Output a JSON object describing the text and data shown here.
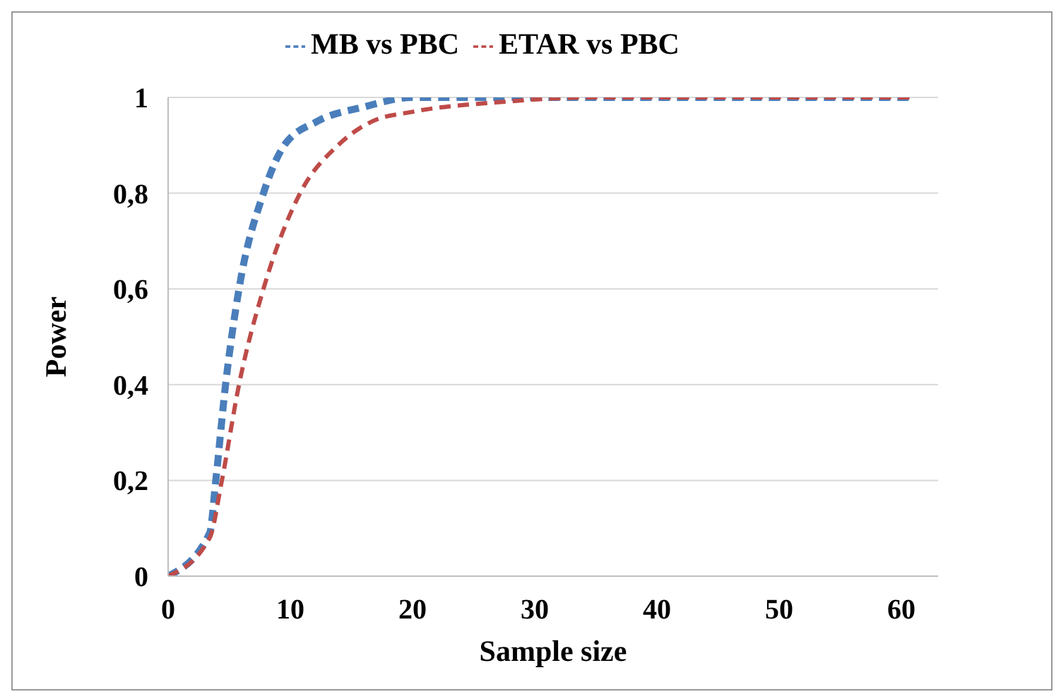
{
  "chart_data": {
    "type": "line",
    "xlabel": "Sample size",
    "ylabel": "Power",
    "xlim": [
      0,
      63
    ],
    "xticks": [
      0,
      10,
      20,
      30,
      40,
      50,
      60
    ],
    "ylim": [
      0,
      1
    ],
    "yticks": [
      0,
      {
        "value": 0.2,
        "label": "0,2"
      },
      {
        "value": 0.4,
        "label": "0,4"
      },
      {
        "value": 0.6,
        "label": "0,6"
      },
      {
        "value": 0.8,
        "label": "0,8"
      },
      1
    ],
    "grid": "y",
    "legend": "top",
    "line_style": "dashed",
    "marker": "none",
    "series": [
      {
        "name": "MB vs PBC",
        "color": "#4a7ebb",
        "x": [
          0,
          3.4,
          3.9,
          4.7,
          5.8,
          7.8,
          9.5,
          12.2,
          16,
          20,
          30,
          40,
          50,
          61
        ],
        "values": [
          0,
          0.09,
          0.2,
          0.4,
          0.6,
          0.8,
          0.9,
          0.95,
          0.98,
          1,
          1,
          1,
          1,
          1
        ]
      },
      {
        "name": "ETAR vs PBC",
        "color": "#be4b48",
        "x": [
          0,
          3.4,
          4.4,
          5.8,
          7.8,
          10.8,
          13.9,
          16.7,
          20,
          27,
          35,
          40,
          50,
          61
        ],
        "values": [
          0,
          0.08,
          0.2,
          0.4,
          0.6,
          0.8,
          0.9,
          0.95,
          0.97,
          0.99,
          1,
          1,
          1,
          1
        ]
      }
    ]
  }
}
